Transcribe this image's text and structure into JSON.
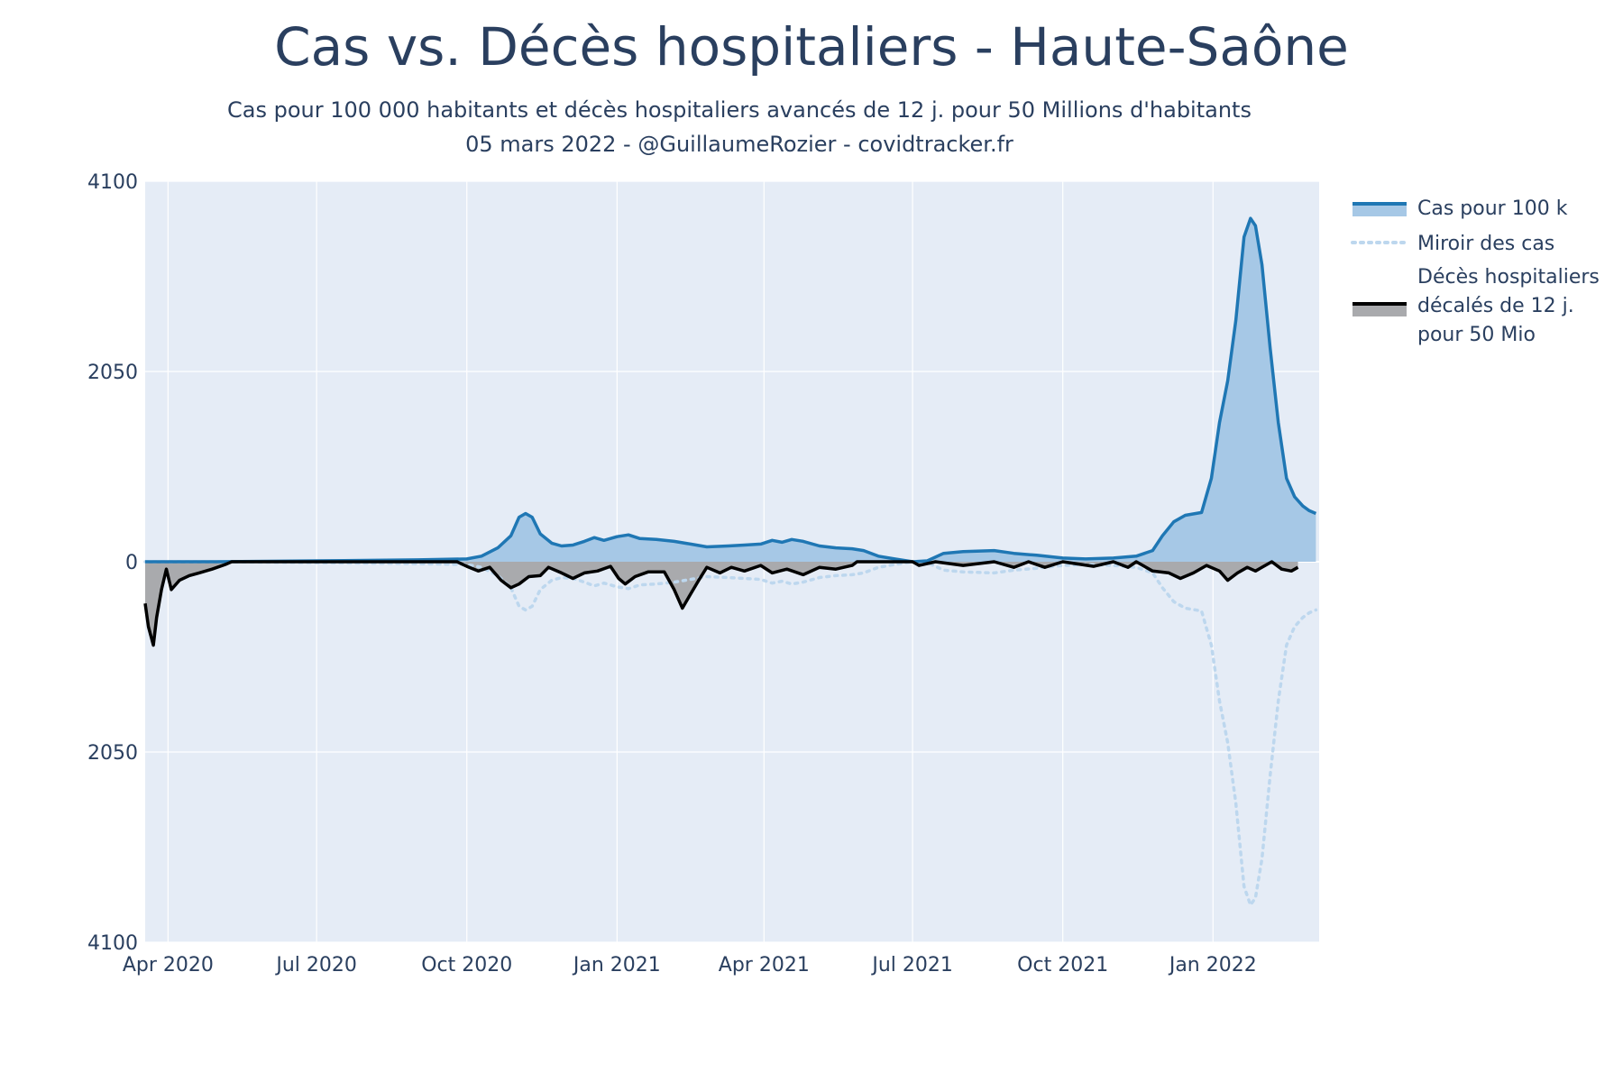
{
  "chart_data": {
    "type": "area",
    "title": "Cas vs. Décès hospitaliers - Haute-Saône",
    "subtitle_line1": "Cas pour 100 000 habitants et décès hospitaliers avancés de 12 j. pour 50 Millions d'habitants",
    "subtitle_line2": "05 mars 2022 - @GuillaumeRozier - covidtracker.fr",
    "xlabel": "",
    "ylabel": "",
    "x_range": [
      "2020-03-18",
      "2022-03-07"
    ],
    "y_range": [
      -4100,
      4100
    ],
    "y_ticks": [
      {
        "value": 4100,
        "label": "4100"
      },
      {
        "value": 2050,
        "label": "2050"
      },
      {
        "value": 0,
        "label": "0"
      },
      {
        "value": -2050,
        "label": "2050"
      },
      {
        "value": -4100,
        "label": "4100"
      }
    ],
    "x_ticks": [
      {
        "date": "2020-04-01",
        "label": "Apr 2020"
      },
      {
        "date": "2020-07-01",
        "label": "Jul 2020"
      },
      {
        "date": "2020-10-01",
        "label": "Oct 2020"
      },
      {
        "date": "2021-01-01",
        "label": "Jan 2021"
      },
      {
        "date": "2021-04-01",
        "label": "Apr 2021"
      },
      {
        "date": "2021-07-01",
        "label": "Jul 2021"
      },
      {
        "date": "2021-10-01",
        "label": "Oct 2021"
      },
      {
        "date": "2022-01-01",
        "label": "Jan 2022"
      }
    ],
    "grid": true,
    "legend_position": "top-right",
    "colors": {
      "plot_bg": "#e5ecf6",
      "grid": "#ffffff",
      "cases_line": "#1f77b4",
      "cases_fill": "#a6c8e6",
      "mirror_line": "#bdd7ee",
      "deaths_line": "#000000",
      "deaths_fill": "#a9aaad"
    },
    "series": [
      {
        "name": "Cas pour 100 k",
        "kind": "filled-line",
        "points": [
          [
            "2020-03-18",
            0
          ],
          [
            "2020-05-01",
            0
          ],
          [
            "2020-07-01",
            10
          ],
          [
            "2020-09-01",
            20
          ],
          [
            "2020-10-01",
            30
          ],
          [
            "2020-10-10",
            60
          ],
          [
            "2020-10-20",
            150
          ],
          [
            "2020-10-28",
            280
          ],
          [
            "2020-11-02",
            480
          ],
          [
            "2020-11-06",
            520
          ],
          [
            "2020-11-10",
            480
          ],
          [
            "2020-11-15",
            300
          ],
          [
            "2020-11-22",
            200
          ],
          [
            "2020-11-28",
            170
          ],
          [
            "2020-12-05",
            180
          ],
          [
            "2020-12-12",
            220
          ],
          [
            "2020-12-18",
            260
          ],
          [
            "2020-12-24",
            230
          ],
          [
            "2021-01-01",
            270
          ],
          [
            "2021-01-08",
            290
          ],
          [
            "2021-01-15",
            250
          ],
          [
            "2021-01-25",
            240
          ],
          [
            "2021-02-05",
            220
          ],
          [
            "2021-02-15",
            190
          ],
          [
            "2021-02-25",
            160
          ],
          [
            "2021-03-10",
            170
          ],
          [
            "2021-03-20",
            180
          ],
          [
            "2021-03-30",
            190
          ],
          [
            "2021-04-06",
            230
          ],
          [
            "2021-04-12",
            210
          ],
          [
            "2021-04-18",
            240
          ],
          [
            "2021-04-25",
            220
          ],
          [
            "2021-05-05",
            170
          ],
          [
            "2021-05-15",
            150
          ],
          [
            "2021-05-25",
            140
          ],
          [
            "2021-06-01",
            120
          ],
          [
            "2021-06-10",
            60
          ],
          [
            "2021-06-20",
            30
          ],
          [
            "2021-07-01",
            0
          ],
          [
            "2021-07-10",
            10
          ],
          [
            "2021-07-20",
            90
          ],
          [
            "2021-08-01",
            110
          ],
          [
            "2021-08-20",
            120
          ],
          [
            "2021-09-01",
            90
          ],
          [
            "2021-09-15",
            70
          ],
          [
            "2021-10-01",
            40
          ],
          [
            "2021-10-15",
            30
          ],
          [
            "2021-11-01",
            40
          ],
          [
            "2021-11-15",
            60
          ],
          [
            "2021-11-25",
            120
          ],
          [
            "2021-12-01",
            280
          ],
          [
            "2021-12-08",
            430
          ],
          [
            "2021-12-15",
            500
          ],
          [
            "2021-12-25",
            530
          ],
          [
            "2021-12-31",
            900
          ],
          [
            "2022-01-05",
            1500
          ],
          [
            "2022-01-10",
            1950
          ],
          [
            "2022-01-15",
            2600
          ],
          [
            "2022-01-20",
            3500
          ],
          [
            "2022-01-24",
            3700
          ],
          [
            "2022-01-27",
            3620
          ],
          [
            "2022-01-31",
            3200
          ],
          [
            "2022-02-05",
            2300
          ],
          [
            "2022-02-10",
            1500
          ],
          [
            "2022-02-15",
            900
          ],
          [
            "2022-02-20",
            700
          ],
          [
            "2022-02-25",
            600
          ],
          [
            "2022-03-01",
            550
          ],
          [
            "2022-03-05",
            520
          ]
        ]
      },
      {
        "name": "Miroir des cas",
        "kind": "dotted-line-mirror",
        "note_sign": "plotted at negative y (mirror of cases)"
      },
      {
        "name": "Décès hospitaliers décalés de 12 j. pour 50 Mio",
        "legend_lines": [
          "Décès hospitaliers",
          "décalés de 12 j.",
          "pour 50 Mio"
        ],
        "kind": "filled-line-negative",
        "points": [
          [
            "2020-03-18",
            450
          ],
          [
            "2020-03-20",
            700
          ],
          [
            "2020-03-23",
            900
          ],
          [
            "2020-03-25",
            600
          ],
          [
            "2020-03-28",
            300
          ],
          [
            "2020-03-31",
            80
          ],
          [
            "2020-04-03",
            300
          ],
          [
            "2020-04-08",
            200
          ],
          [
            "2020-04-14",
            150
          ],
          [
            "2020-04-20",
            120
          ],
          [
            "2020-04-28",
            80
          ],
          [
            "2020-05-06",
            30
          ],
          [
            "2020-05-10",
            0
          ],
          [
            "2020-09-25",
            0
          ],
          [
            "2020-10-01",
            50
          ],
          [
            "2020-10-08",
            100
          ],
          [
            "2020-10-15",
            60
          ],
          [
            "2020-10-22",
            200
          ],
          [
            "2020-10-28",
            280
          ],
          [
            "2020-11-02",
            240
          ],
          [
            "2020-11-08",
            160
          ],
          [
            "2020-11-15",
            150
          ],
          [
            "2020-11-20",
            60
          ],
          [
            "2020-11-28",
            120
          ],
          [
            "2020-12-05",
            180
          ],
          [
            "2020-12-12",
            120
          ],
          [
            "2020-12-20",
            100
          ],
          [
            "2020-12-28",
            50
          ],
          [
            "2021-01-02",
            180
          ],
          [
            "2021-01-06",
            240
          ],
          [
            "2021-01-12",
            160
          ],
          [
            "2021-01-20",
            110
          ],
          [
            "2021-01-30",
            110
          ],
          [
            "2021-02-05",
            300
          ],
          [
            "2021-02-10",
            500
          ],
          [
            "2021-02-15",
            350
          ],
          [
            "2021-02-20",
            200
          ],
          [
            "2021-02-25",
            60
          ],
          [
            "2021-03-05",
            120
          ],
          [
            "2021-03-12",
            60
          ],
          [
            "2021-03-20",
            100
          ],
          [
            "2021-03-30",
            40
          ],
          [
            "2021-04-06",
            120
          ],
          [
            "2021-04-15",
            80
          ],
          [
            "2021-04-25",
            140
          ],
          [
            "2021-05-05",
            60
          ],
          [
            "2021-05-15",
            80
          ],
          [
            "2021-05-25",
            40
          ],
          [
            "2021-05-28",
            0
          ],
          [
            "2021-07-01",
            0
          ],
          [
            "2021-07-05",
            40
          ],
          [
            "2021-07-15",
            0
          ],
          [
            "2021-08-01",
            40
          ],
          [
            "2021-08-20",
            0
          ],
          [
            "2021-09-01",
            60
          ],
          [
            "2021-09-10",
            0
          ],
          [
            "2021-09-20",
            60
          ],
          [
            "2021-10-01",
            0
          ],
          [
            "2021-10-20",
            50
          ],
          [
            "2021-11-01",
            0
          ],
          [
            "2021-11-10",
            60
          ],
          [
            "2021-11-15",
            0
          ],
          [
            "2021-11-25",
            100
          ],
          [
            "2021-12-05",
            120
          ],
          [
            "2021-12-12",
            180
          ],
          [
            "2021-12-20",
            120
          ],
          [
            "2021-12-28",
            40
          ],
          [
            "2022-01-05",
            100
          ],
          [
            "2022-01-10",
            200
          ],
          [
            "2022-01-16",
            120
          ],
          [
            "2022-01-22",
            60
          ],
          [
            "2022-01-27",
            100
          ],
          [
            "2022-02-02",
            40
          ],
          [
            "2022-02-06",
            0
          ],
          [
            "2022-02-12",
            80
          ],
          [
            "2022-02-18",
            100
          ],
          [
            "2022-02-22",
            60
          ]
        ]
      }
    ]
  }
}
